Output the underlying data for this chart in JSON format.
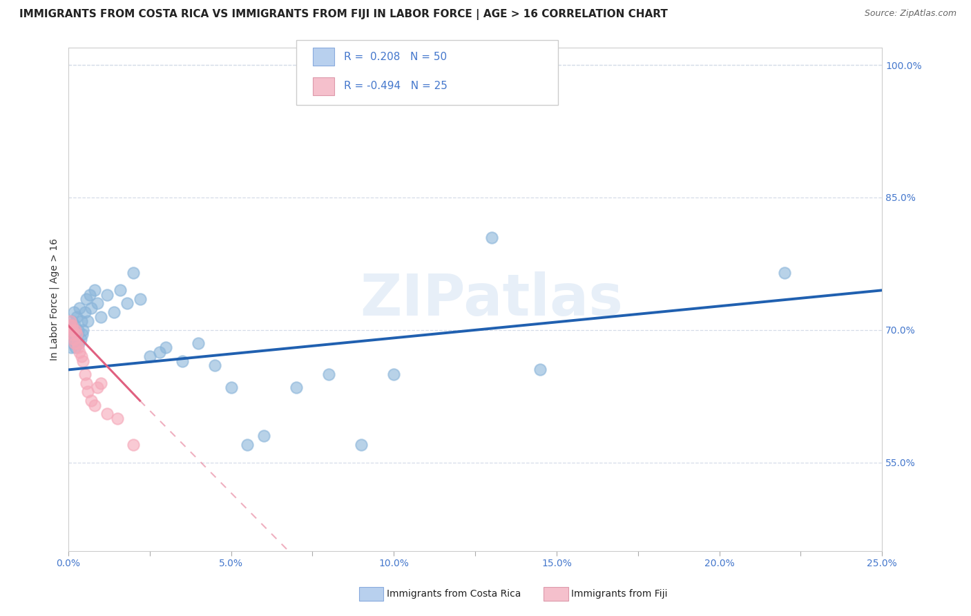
{
  "title": "IMMIGRANTS FROM COSTA RICA VS IMMIGRANTS FROM FIJI IN LABOR FORCE | AGE > 16 CORRELATION CHART",
  "source": "Source: ZipAtlas.com",
  "ylabel": "In Labor Force | Age > 16",
  "xlim": [
    0.0,
    25.0
  ],
  "ylim": [
    45.0,
    102.0
  ],
  "xtick_vals": [
    0.0,
    2.5,
    5.0,
    7.5,
    10.0,
    12.5,
    15.0,
    17.5,
    20.0,
    22.5,
    25.0
  ],
  "xtick_labels": [
    "0.0%",
    "",
    "5.0%",
    "",
    "10.0%",
    "",
    "15.0%",
    "",
    "20.0%",
    "",
    "25.0%"
  ],
  "ytick_vals": [
    55.0,
    70.0,
    85.0,
    100.0
  ],
  "ytick_labels": [
    "55.0%",
    "70.0%",
    "85.0%",
    "100.0%"
  ],
  "watermark": "ZIPatlas",
  "costa_rica_color": "#89b4d9",
  "fiji_color": "#f5a7b8",
  "costa_rica_line_color": "#2060b0",
  "fiji_line_color": "#e06080",
  "background_color": "#ffffff",
  "grid_color": "#d5dce8",
  "legend_blue_fill": "#b8d0ee",
  "legend_pink_fill": "#f5c0cc",
  "title_color": "#222222",
  "tick_color": "#4477cc",
  "label_color": "#333333",
  "source_color": "#666666",
  "cr_x": [
    0.05,
    0.07,
    0.08,
    0.1,
    0.12,
    0.13,
    0.15,
    0.17,
    0.18,
    0.2,
    0.22,
    0.25,
    0.27,
    0.3,
    0.32,
    0.35,
    0.38,
    0.4,
    0.42,
    0.45,
    0.5,
    0.55,
    0.6,
    0.65,
    0.7,
    0.8,
    0.9,
    1.0,
    1.2,
    1.4,
    1.6,
    1.8,
    2.0,
    2.2,
    2.5,
    2.8,
    3.0,
    3.5,
    4.0,
    4.5,
    5.0,
    5.5,
    6.0,
    7.0,
    8.0,
    9.0,
    10.0,
    13.0,
    14.5,
    22.0
  ],
  "cr_y": [
    69.0,
    70.5,
    68.0,
    71.0,
    69.5,
    70.0,
    68.5,
    72.0,
    69.0,
    70.5,
    68.0,
    71.5,
    69.5,
    70.0,
    68.5,
    72.5,
    69.0,
    71.0,
    69.5,
    70.0,
    72.0,
    73.5,
    71.0,
    74.0,
    72.5,
    74.5,
    73.0,
    71.5,
    74.0,
    72.0,
    74.5,
    73.0,
    76.5,
    73.5,
    67.0,
    67.5,
    68.0,
    66.5,
    68.5,
    66.0,
    63.5,
    57.0,
    58.0,
    63.5,
    65.0,
    57.0,
    65.0,
    80.5,
    65.5,
    76.5
  ],
  "fiji_x": [
    0.05,
    0.07,
    0.08,
    0.1,
    0.12,
    0.15,
    0.18,
    0.2,
    0.22,
    0.25,
    0.28,
    0.3,
    0.35,
    0.4,
    0.45,
    0.5,
    0.55,
    0.6,
    0.7,
    0.8,
    0.9,
    1.0,
    1.2,
    1.5,
    2.0
  ],
  "fiji_y": [
    70.5,
    71.0,
    70.0,
    70.5,
    69.5,
    70.0,
    69.0,
    68.5,
    70.0,
    69.5,
    68.5,
    68.0,
    67.5,
    67.0,
    66.5,
    65.0,
    64.0,
    63.0,
    62.0,
    61.5,
    63.5,
    64.0,
    60.5,
    60.0,
    57.0
  ],
  "title_fontsize": 11,
  "label_fontsize": 10,
  "tick_fontsize": 10,
  "source_fontsize": 9
}
